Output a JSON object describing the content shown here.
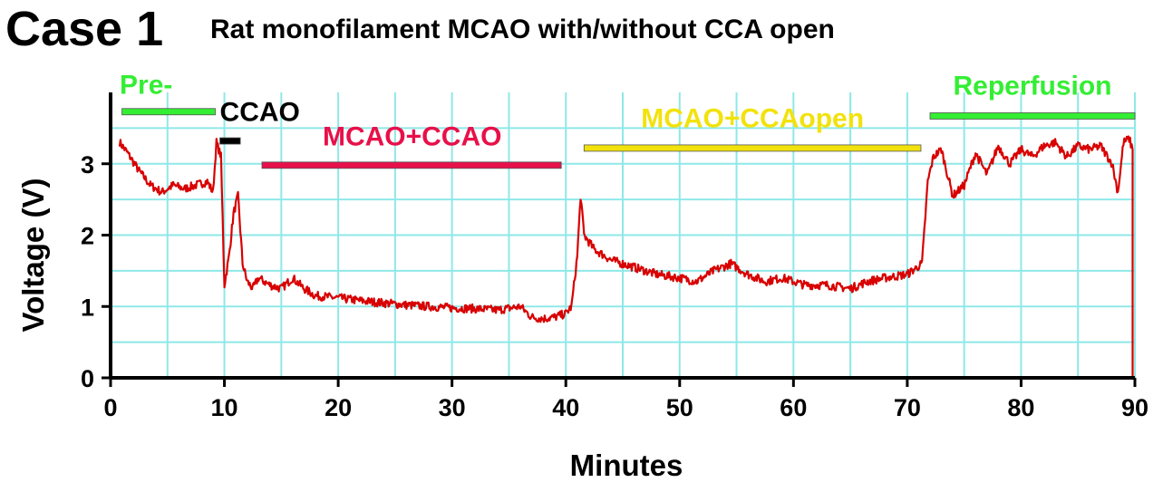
{
  "case_label": "Case 1",
  "title": "Rat monofilament MCAO with/without CCA open",
  "chart_data": {
    "type": "line",
    "xlabel": "Minutes",
    "ylabel": "Voltage (V)",
    "xlim": [
      0,
      90
    ],
    "ylim": [
      0,
      4
    ],
    "xticks": [
      0,
      10,
      20,
      30,
      40,
      50,
      60,
      70,
      80,
      90
    ],
    "yticks": [
      0,
      1,
      2,
      3
    ],
    "grid": true,
    "series": [
      {
        "color": "#d80000",
        "x": [
          0.8,
          1.5,
          2.5,
          3.5,
          4.5,
          5.5,
          6.5,
          7.5,
          8.5,
          9.0,
          9.3,
          9.7,
          10.0,
          10.4,
          10.8,
          11.2,
          11.6,
          12.0,
          12.5,
          13.0,
          14.0,
          15.0,
          16.0,
          17.0,
          18.0,
          20.0,
          22.0,
          24.0,
          26.0,
          28.0,
          30.0,
          32.0,
          34.0,
          36.0,
          37.0,
          38.0,
          39.0,
          40.0,
          40.5,
          41.0,
          41.3,
          41.6,
          42.5,
          44.0,
          46.0,
          48.0,
          50.0,
          51.5,
          53.0,
          54.5,
          56.0,
          57.5,
          59.0,
          61.0,
          63.0,
          65.0,
          66.5,
          68.0,
          70.0,
          71.3,
          71.8,
          72.3,
          73.0,
          74.0,
          75.0,
          76.0,
          77.0,
          78.0,
          79.0,
          80.0,
          81.0,
          82.0,
          83.0,
          84.0,
          85.0,
          86.0,
          87.0,
          88.0,
          88.5,
          89.0,
          89.5,
          89.8
        ],
        "y": [
          3.3,
          3.15,
          2.9,
          2.7,
          2.6,
          2.7,
          2.65,
          2.7,
          2.75,
          2.6,
          3.3,
          3.1,
          1.3,
          1.7,
          2.3,
          2.55,
          1.6,
          1.35,
          1.25,
          1.4,
          1.3,
          1.25,
          1.4,
          1.25,
          1.15,
          1.12,
          1.08,
          1.05,
          1.02,
          1.0,
          0.98,
          0.97,
          0.95,
          1.0,
          0.85,
          0.83,
          0.85,
          0.9,
          1.0,
          1.7,
          2.55,
          2.0,
          1.8,
          1.65,
          1.55,
          1.45,
          1.4,
          1.35,
          1.5,
          1.6,
          1.45,
          1.35,
          1.4,
          1.3,
          1.3,
          1.25,
          1.35,
          1.4,
          1.45,
          1.6,
          2.75,
          3.1,
          3.2,
          2.55,
          2.7,
          3.15,
          2.85,
          3.25,
          3.0,
          3.2,
          3.1,
          3.25,
          3.3,
          3.1,
          3.25,
          3.2,
          3.25,
          3.0,
          2.6,
          3.3,
          3.35,
          3.2
        ]
      }
    ],
    "annotations": [
      {
        "text": "Pre-",
        "color": "#33ee33",
        "x_start": 1.0,
        "x_end": 9.2,
        "bar_y": 3.73
      },
      {
        "text": "CCAO",
        "color": "#000000",
        "x_start": 9.6,
        "x_end": 11.4,
        "bar_y": 3.32
      },
      {
        "text": "MCAO+CCAO",
        "color": "#e8104a",
        "x_start": 13.3,
        "x_end": 39.6,
        "bar_y": 2.98
      },
      {
        "text": "MCAO+CCAopen",
        "color": "#f2e20c",
        "x_start": 41.6,
        "x_end": 71.2,
        "bar_y": 3.22
      },
      {
        "text": "Reperfusion",
        "color": "#33ee33",
        "x_start": 72.0,
        "x_end": 90.0,
        "bar_y": 3.67
      }
    ]
  },
  "colors": {
    "grid": "#8fe8e8",
    "axis": "#000000"
  }
}
